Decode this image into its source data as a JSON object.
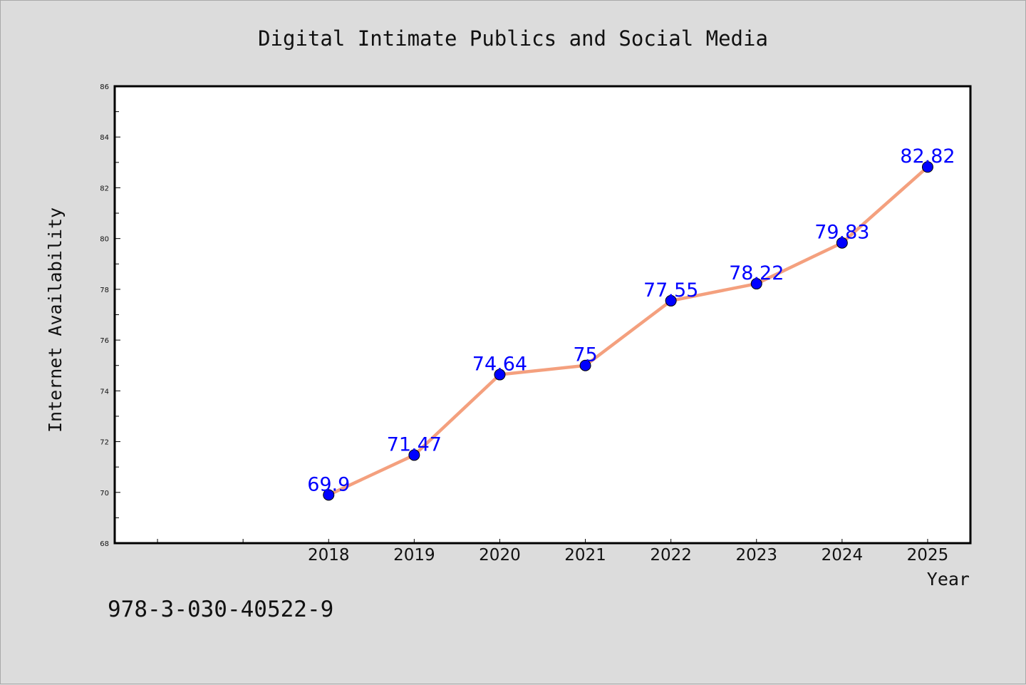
{
  "chart_data": {
    "type": "line",
    "title": "Digital Intimate Publics and Social Media",
    "xlabel": "Year",
    "ylabel": "Internet Availability",
    "categories": [
      "2018",
      "2019",
      "2020",
      "2021",
      "2022",
      "2023",
      "2024",
      "2025"
    ],
    "x": [
      2018,
      2019,
      2020,
      2021,
      2022,
      2023,
      2024,
      2025
    ],
    "series": [
      {
        "values": [
          69.9,
          71.47,
          74.64,
          75,
          77.55,
          78.22,
          79.83,
          82.82
        ],
        "labels": [
          "69.9",
          "71.47",
          "74.64",
          "75",
          "77.55",
          "78.22",
          "79.83",
          "82.82"
        ],
        "line_color": "#f4a07e",
        "marker_color": "#0000ff",
        "label_color": "#0000ff"
      }
    ],
    "xlim": [
      2015.5,
      2025.5
    ],
    "ylim": [
      68,
      86
    ],
    "yticks": [
      68,
      70,
      72,
      74,
      76,
      78,
      80,
      82,
      84,
      86
    ],
    "xticks": [
      2016,
      2017,
      2018,
      2019,
      2020,
      2021,
      2022,
      2023,
      2024,
      2025
    ],
    "grid": false,
    "footnote": "978-3-030-40522-9",
    "colors": {
      "background": "#dcdcdc",
      "plot_area": "#ffffff",
      "axes": "#000000"
    }
  }
}
